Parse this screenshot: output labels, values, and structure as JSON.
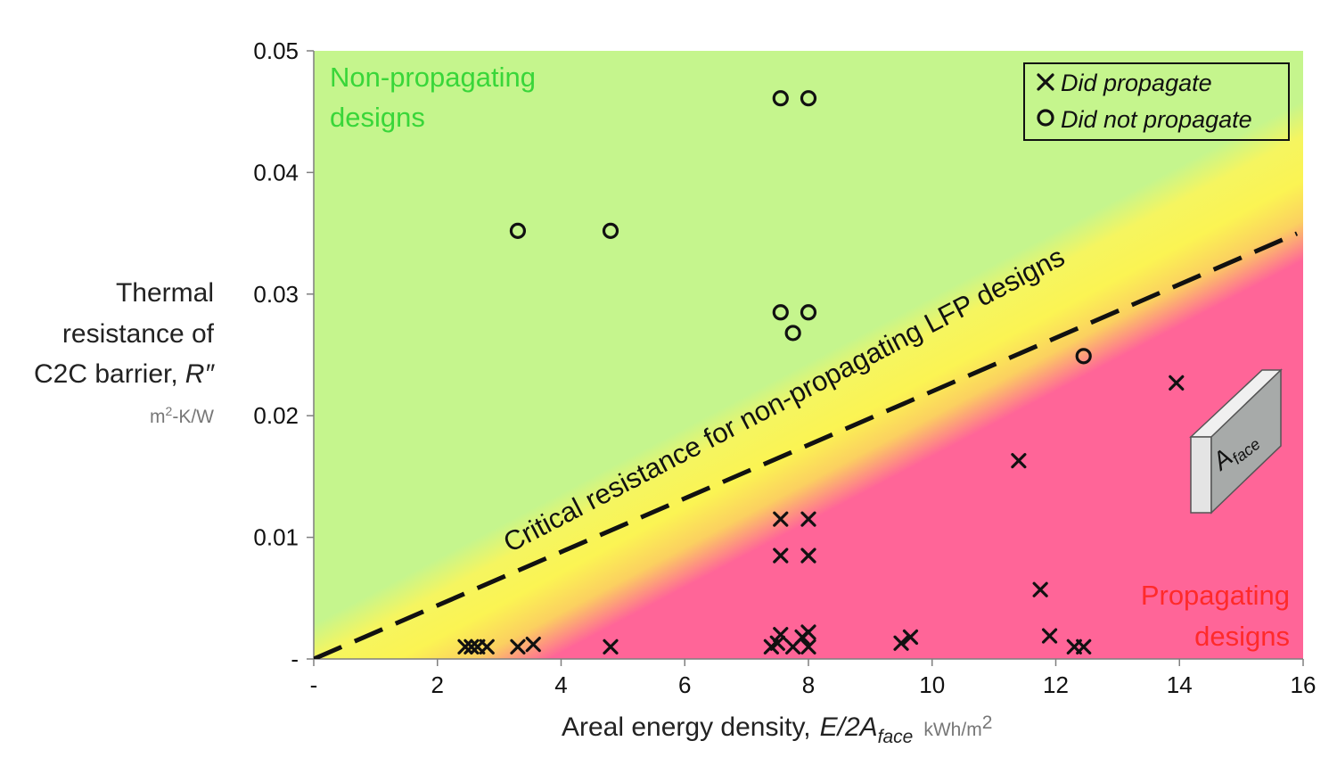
{
  "chart_data": {
    "type": "scatter",
    "xlim": [
      0,
      16
    ],
    "ylim": [
      0,
      0.05
    ],
    "x_ticks": [
      "-",
      "2",
      "4",
      "6",
      "8",
      "10",
      "12",
      "14",
      "16"
    ],
    "y_ticks": [
      "-",
      "0.01",
      "0.02",
      "0.03",
      "0.04",
      "0.05"
    ],
    "x_tick_values": [
      0,
      2,
      4,
      6,
      8,
      10,
      12,
      14,
      16
    ],
    "y_tick_values": [
      0,
      0.01,
      0.02,
      0.03,
      0.04,
      0.05
    ],
    "xlabel": {
      "main": "Areal energy density,",
      "expr": "E/2A",
      "sub": "face",
      "unit": "kWh/m",
      "unit_sup": "2"
    },
    "ylabel": {
      "line1": "Thermal",
      "line2": "resistance of",
      "line3": "C2C barrier,",
      "var": "R″",
      "unit_pre": "m",
      "unit_sup": "2",
      "unit_post": "-K/W"
    },
    "regions": {
      "non_propagating": [
        "Non-propagating",
        "designs"
      ],
      "propagating": [
        "Propagating",
        "designs"
      ]
    },
    "critical_line": {
      "label": "Critical resistance for non-propagating LFP designs",
      "slope": 0.0022,
      "x": [
        0,
        15.9
      ]
    },
    "legend": {
      "entries": [
        {
          "marker": "x",
          "label": "Did propagate"
        },
        {
          "marker": "o",
          "label": "Did not propagate"
        }
      ],
      "position": "top-right"
    },
    "inset": {
      "label": "A",
      "label_sub": "face"
    },
    "series": [
      {
        "name": "Did propagate",
        "marker": "x",
        "points": [
          [
            2.45,
            0.001
          ],
          [
            2.55,
            0.001
          ],
          [
            2.65,
            0.001
          ],
          [
            2.8,
            0.001
          ],
          [
            3.3,
            0.001
          ],
          [
            3.55,
            0.0012
          ],
          [
            4.8,
            0.001
          ],
          [
            7.4,
            0.001
          ],
          [
            7.5,
            0.0013
          ],
          [
            7.55,
            0.002
          ],
          [
            7.75,
            0.001
          ],
          [
            8.0,
            0.001
          ],
          [
            7.9,
            0.0018
          ],
          [
            8.0,
            0.0022
          ],
          [
            7.55,
            0.0085
          ],
          [
            8.0,
            0.0085
          ],
          [
            7.55,
            0.0115
          ],
          [
            8.0,
            0.0115
          ],
          [
            9.5,
            0.0013
          ],
          [
            9.65,
            0.0018
          ],
          [
            11.4,
            0.0163
          ],
          [
            11.75,
            0.0057
          ],
          [
            11.9,
            0.0019
          ],
          [
            12.3,
            0.001
          ],
          [
            12.45,
            0.001
          ],
          [
            13.95,
            0.0227
          ]
        ]
      },
      {
        "name": "Did not propagate",
        "marker": "o",
        "points": [
          [
            3.3,
            0.0352
          ],
          [
            4.8,
            0.0352
          ],
          [
            7.55,
            0.0461
          ],
          [
            8.0,
            0.0461
          ],
          [
            7.55,
            0.0285
          ],
          [
            8.0,
            0.0285
          ],
          [
            7.75,
            0.0268
          ],
          [
            12.45,
            0.0249
          ]
        ]
      }
    ],
    "colors": {
      "green": "#c5f58d",
      "yellow": "#fbf453",
      "pink": "#ff6598",
      "region_green_text": "#39d639",
      "region_red_text": "#ff2a2a"
    }
  }
}
